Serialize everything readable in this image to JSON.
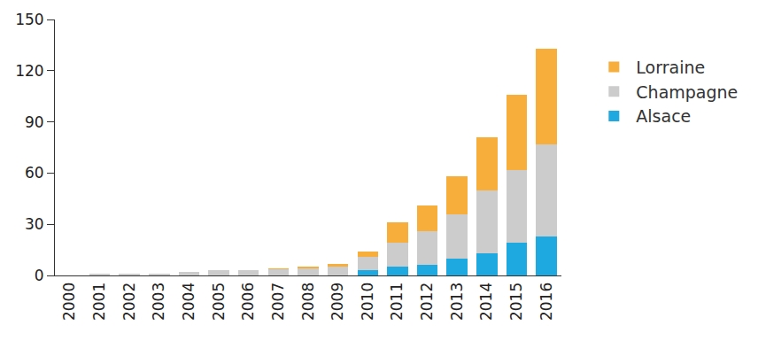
{
  "chart_data": {
    "type": "bar",
    "stacked": true,
    "grid": false,
    "legend": "right",
    "categories": [
      "2000",
      "2001",
      "2002",
      "2003",
      "2004",
      "2005",
      "2006",
      "2007",
      "2008",
      "2009",
      "2010",
      "2011",
      "2012",
      "2013",
      "2014",
      "2015",
      "2016"
    ],
    "series": [
      {
        "name": "Alsace",
        "color": "#1fa9e1",
        "values": [
          0,
          0,
          0,
          0,
          0,
          0,
          0,
          0,
          0,
          0,
          3,
          5,
          6,
          10,
          13,
          19,
          23
        ]
      },
      {
        "name": "Champagne",
        "color": "#cccccc",
        "values": [
          0,
          1,
          1,
          1,
          2,
          3,
          3,
          3.5,
          4,
          5,
          8,
          14,
          20,
          26,
          37,
          43,
          54
        ]
      },
      {
        "name": "Lorraine",
        "color": "#f8ae3b",
        "values": [
          0,
          0,
          0,
          0,
          0,
          0,
          0,
          0.5,
          1,
          2,
          3,
          12,
          15,
          22,
          31,
          44,
          56
        ]
      }
    ],
    "ylim": [
      0,
      150
    ],
    "yticks": [
      0,
      30,
      60,
      90,
      120,
      150
    ]
  }
}
